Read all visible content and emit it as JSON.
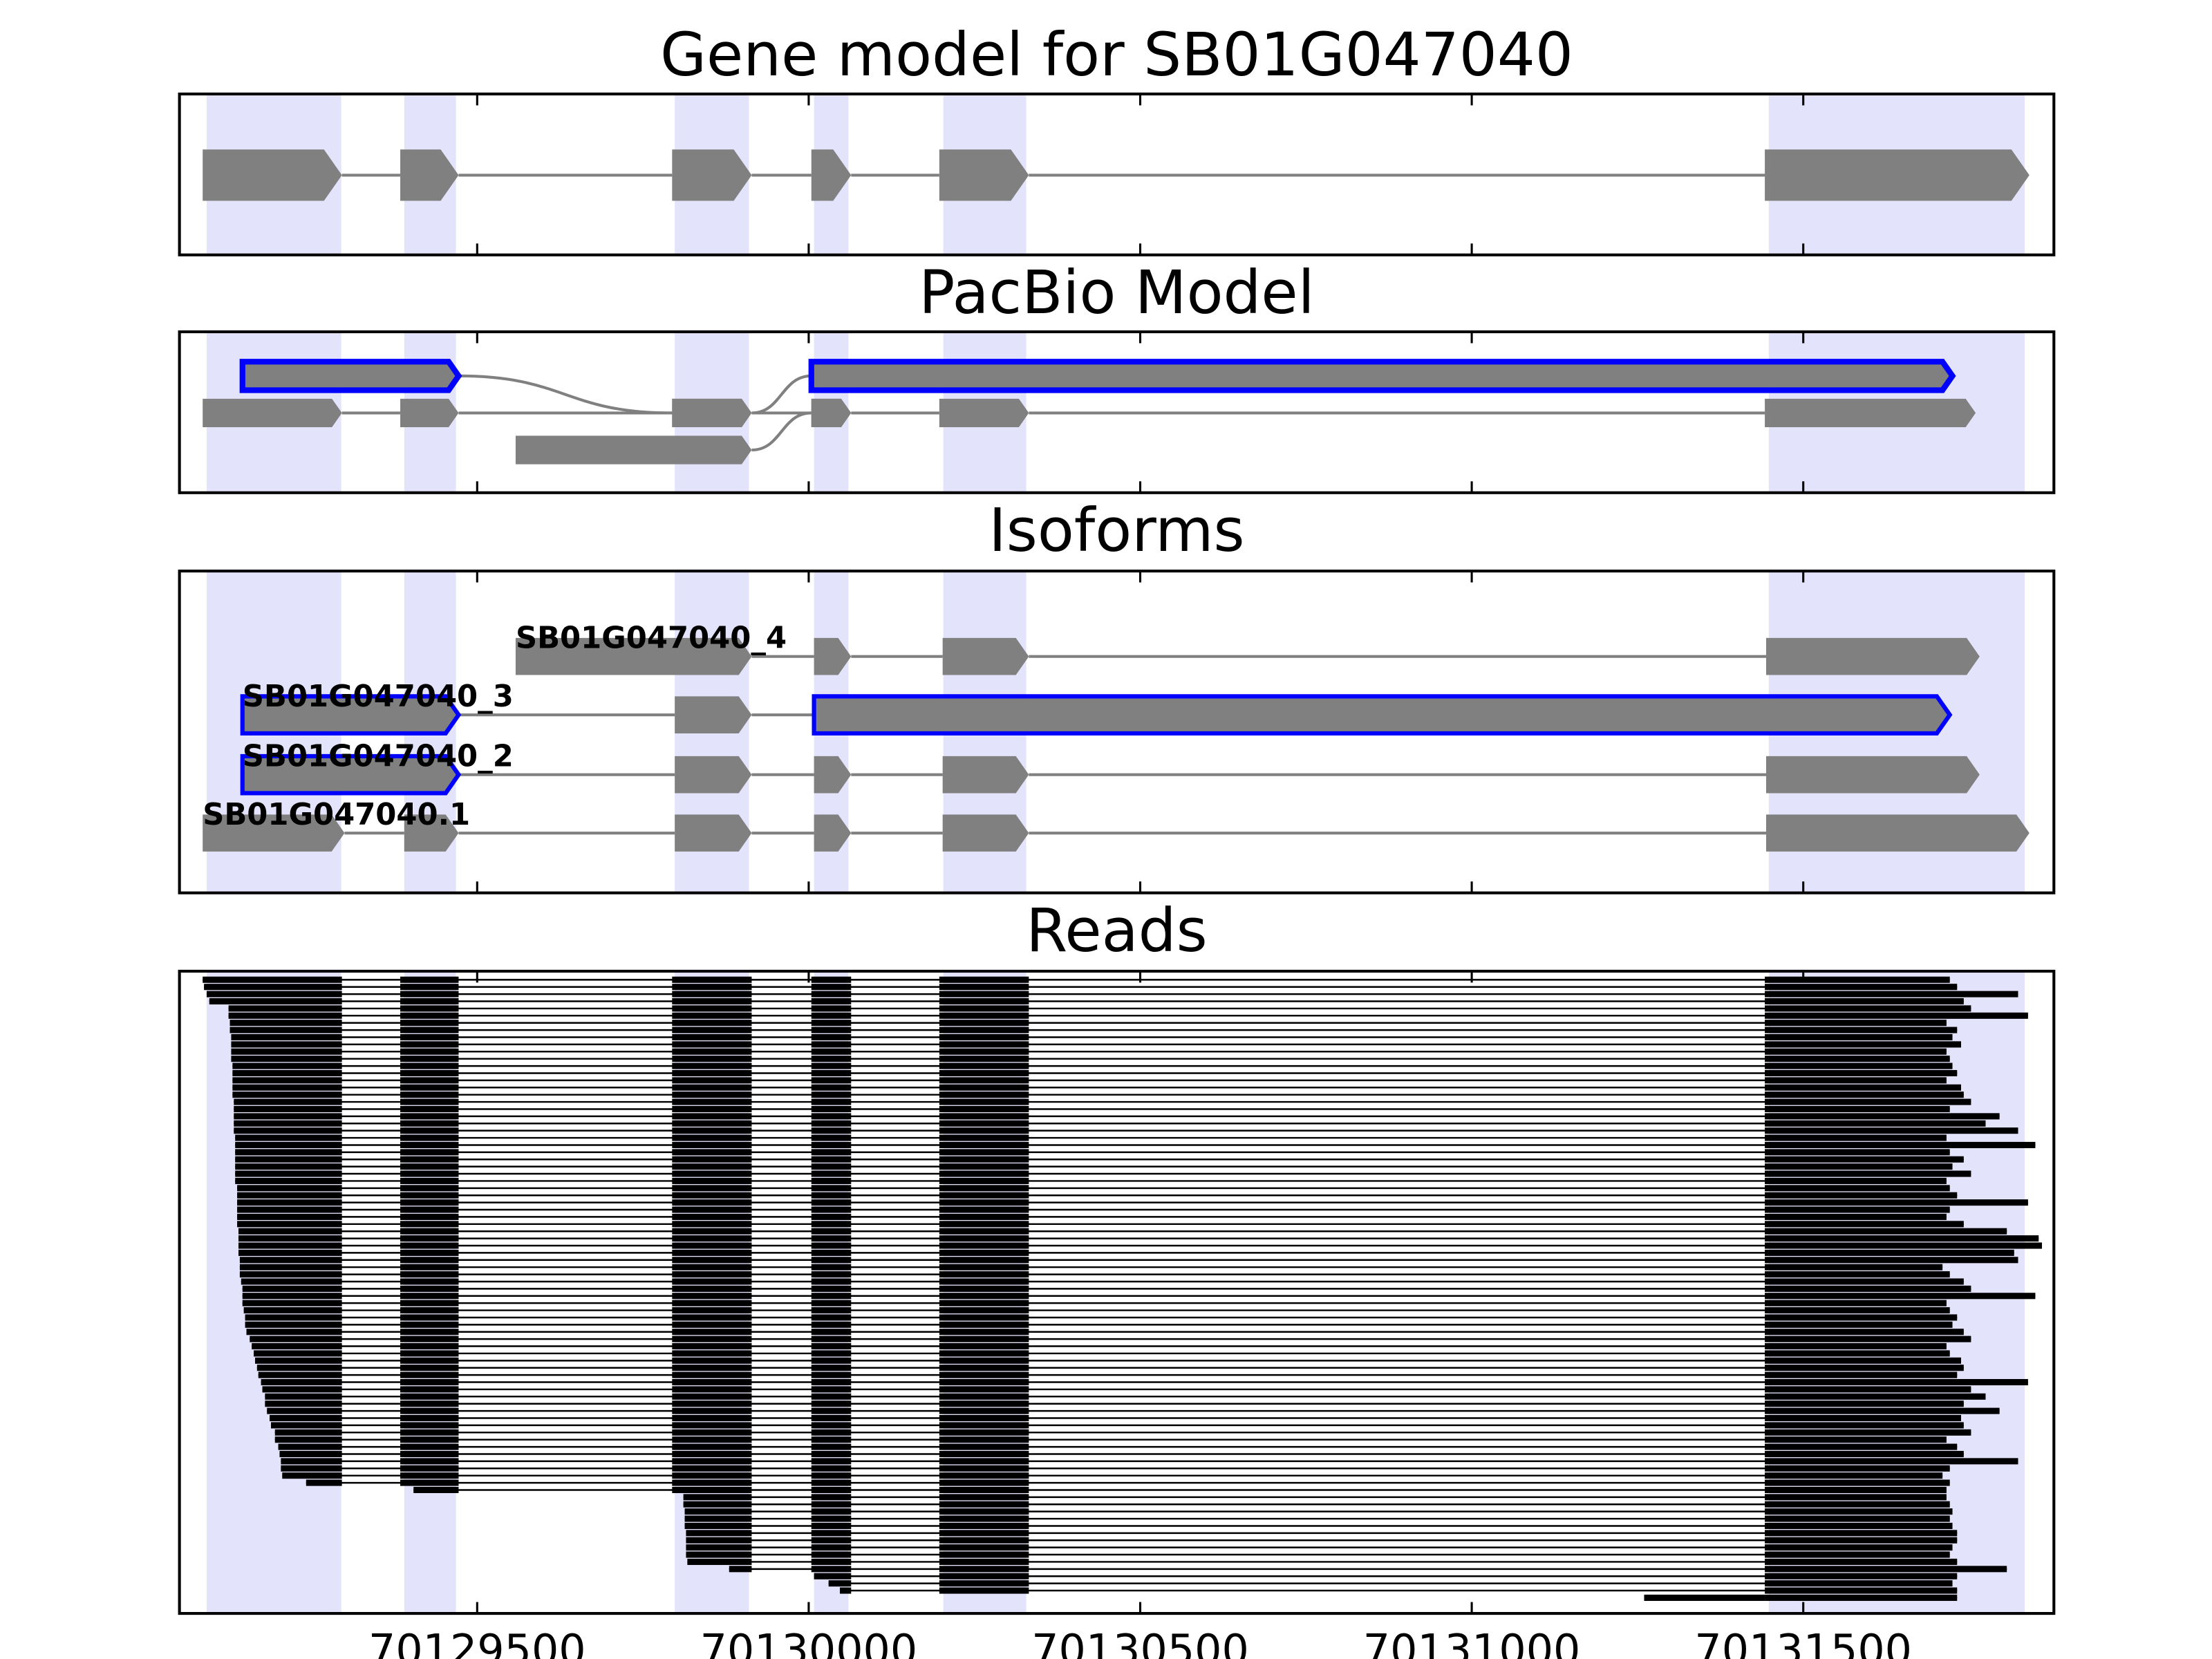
{
  "chart_data": [
    {
      "type": "gene-model",
      "title": "Gene model for SB01G047040",
      "exon_color": "#808080",
      "shade_color": "#e3e3fb",
      "highlight_regions": [
        [
          70129092,
          70129295
        ],
        [
          70129390,
          70129468
        ],
        [
          70129798,
          70129910
        ],
        [
          70130008,
          70130060
        ],
        [
          70130203,
          70130328
        ],
        [
          70131448,
          70131834
        ]
      ],
      "exons": [
        [
          70129086,
          70129296
        ],
        [
          70129384,
          70129472
        ],
        [
          70129794,
          70129914
        ],
        [
          70130004,
          70130064
        ],
        [
          70130197,
          70130332
        ],
        [
          70131442,
          70131841
        ]
      ]
    },
    {
      "type": "pacbio",
      "title": "PacBio Model",
      "exon_color": "#808080",
      "highlight_color": "#0000ff",
      "transcripts": [
        {
          "exons": [
            [
              70129146,
              70129472,
              0
            ],
            [
              70129794,
              70129914,
              1
            ],
            [
              70130004,
              70131725,
              0
            ]
          ],
          "highlight": [
            true,
            false,
            true
          ]
        },
        {
          "exons": [
            [
              70129086,
              70129296,
              1
            ],
            [
              70129384,
              70129472,
              1
            ],
            [
              70129794,
              70129914,
              1
            ],
            [
              70130004,
              70130064,
              1
            ],
            [
              70130197,
              70130332,
              1
            ],
            [
              70131442,
              70131760,
              1
            ]
          ],
          "highlight": [
            false,
            false,
            false,
            false,
            false,
            false
          ]
        },
        {
          "exons": [
            [
              70129558,
              70129914,
              2
            ],
            [
              70130004,
              70130064,
              1
            ]
          ],
          "highlight": [
            false,
            false
          ]
        }
      ]
    },
    {
      "type": "isoforms",
      "title": "Isoforms",
      "exon_color": "#808080",
      "highlight_color": "#0000ff",
      "isoforms": [
        {
          "name": "SB01G047040_4",
          "exons": [
            [
              70129558,
              70129914
            ],
            [
              70130008,
              70130064
            ],
            [
              70130202,
              70130332
            ],
            [
              70131444,
              70131766
            ]
          ],
          "highlight": [
            false,
            false,
            false,
            false
          ]
        },
        {
          "name": "SB01G047040_3",
          "exons": [
            [
              70129146,
              70129472
            ],
            [
              70129798,
              70129914
            ],
            [
              70130008,
              70131721
            ]
          ],
          "highlight": [
            true,
            false,
            true
          ]
        },
        {
          "name": "SB01G047040_2",
          "exons": [
            [
              70129146,
              70129472
            ],
            [
              70129798,
              70129914
            ],
            [
              70130008,
              70130064
            ],
            [
              70130202,
              70130332
            ],
            [
              70131444,
              70131766
            ]
          ],
          "highlight": [
            true,
            false,
            false,
            false,
            false
          ]
        },
        {
          "name": "SB01G047040.1",
          "exons": [
            [
              70129086,
              70129300
            ],
            [
              70129390,
              70129472
            ],
            [
              70129798,
              70129914
            ],
            [
              70130008,
              70130064
            ],
            [
              70130202,
              70130332
            ],
            [
              70131444,
              70131841
            ]
          ],
          "highlight": [
            false,
            false,
            false,
            false,
            false,
            false
          ]
        }
      ]
    },
    {
      "type": "reads",
      "title": "Reads",
      "read_color": "#000000",
      "xlim": [
        70129051,
        70131878
      ],
      "xticks": [
        70129500,
        70130000,
        70130500,
        70131000,
        70131500
      ],
      "reads": [
        [
          70129086,
          70131721
        ],
        [
          70129088,
          70131732
        ],
        [
          70129092,
          70131824
        ],
        [
          70129096,
          70131742
        ],
        [
          70129125,
          70131753
        ],
        [
          70129125,
          70131839
        ],
        [
          70129127,
          70131716
        ],
        [
          70129127,
          70131732
        ],
        [
          70129129,
          70131725
        ],
        [
          70129129,
          70131738
        ],
        [
          70129129,
          70131716
        ],
        [
          70129129,
          70131721
        ],
        [
          70129131,
          70131725
        ],
        [
          70129131,
          70131732
        ],
        [
          70129131,
          70131716
        ],
        [
          70129131,
          70131738
        ],
        [
          70129131,
          70131742
        ],
        [
          70129133,
          70131753
        ],
        [
          70129133,
          70131721
        ],
        [
          70129133,
          70131796
        ],
        [
          70129133,
          70131775
        ],
        [
          70129133,
          70131824
        ],
        [
          70129135,
          70131716
        ],
        [
          70129135,
          70131850
        ],
        [
          70129135,
          70131721
        ],
        [
          70129135,
          70131742
        ],
        [
          70129135,
          70131725
        ],
        [
          70129135,
          70131753
        ],
        [
          70129135,
          70131716
        ],
        [
          70129138,
          70131721
        ],
        [
          70129138,
          70131732
        ],
        [
          70129138,
          70131839
        ],
        [
          70129138,
          70131721
        ],
        [
          70129138,
          70131716
        ],
        [
          70129138,
          70131742
        ],
        [
          70129140,
          70131807
        ],
        [
          70129140,
          70131855
        ],
        [
          70129140,
          70131860
        ],
        [
          70129140,
          70131818
        ],
        [
          70129142,
          70131824
        ],
        [
          70129142,
          70131710
        ],
        [
          70129142,
          70131721
        ],
        [
          70129144,
          70131742
        ],
        [
          70129146,
          70131753
        ],
        [
          70129146,
          70131850
        ],
        [
          70129146,
          70131716
        ],
        [
          70129148,
          70131721
        ],
        [
          70129150,
          70131732
        ],
        [
          70129150,
          70131725
        ],
        [
          70129152,
          70131742
        ],
        [
          70129157,
          70131753
        ],
        [
          70129160,
          70131716
        ],
        [
          70129163,
          70131721
        ],
        [
          70129165,
          70131738
        ],
        [
          70129168,
          70131742
        ],
        [
          70129170,
          70131732
        ],
        [
          70129174,
          70131839
        ],
        [
          70129176,
          70131753
        ],
        [
          70129180,
          70131775
        ],
        [
          70129180,
          70131742
        ],
        [
          70129183,
          70131796
        ],
        [
          70129187,
          70131738
        ],
        [
          70129189,
          70131742
        ],
        [
          70129195,
          70131753
        ],
        [
          70129195,
          70131716
        ],
        [
          70129200,
          70131732
        ],
        [
          70129202,
          70131742
        ],
        [
          70129204,
          70131824
        ],
        [
          70129204,
          70131721
        ],
        [
          70129206,
          70131710
        ],
        [
          70129242,
          70131721
        ],
        [
          70129404,
          70131716
        ],
        [
          70129811,
          70131716
        ],
        [
          70129811,
          70131721
        ],
        [
          70129813,
          70131725
        ],
        [
          70129813,
          70131721
        ],
        [
          70129813,
          70131725
        ],
        [
          70129815,
          70131732
        ],
        [
          70129815,
          70131732
        ],
        [
          70129815,
          70131725
        ],
        [
          70129815,
          70131721
        ],
        [
          70129817,
          70131732
        ],
        [
          70129880,
          70131807
        ],
        [
          70130008,
          70131732
        ],
        [
          70130030,
          70131725
        ],
        [
          70130047,
          70131732
        ],
        [
          70131260,
          70131732
        ]
      ]
    }
  ]
}
